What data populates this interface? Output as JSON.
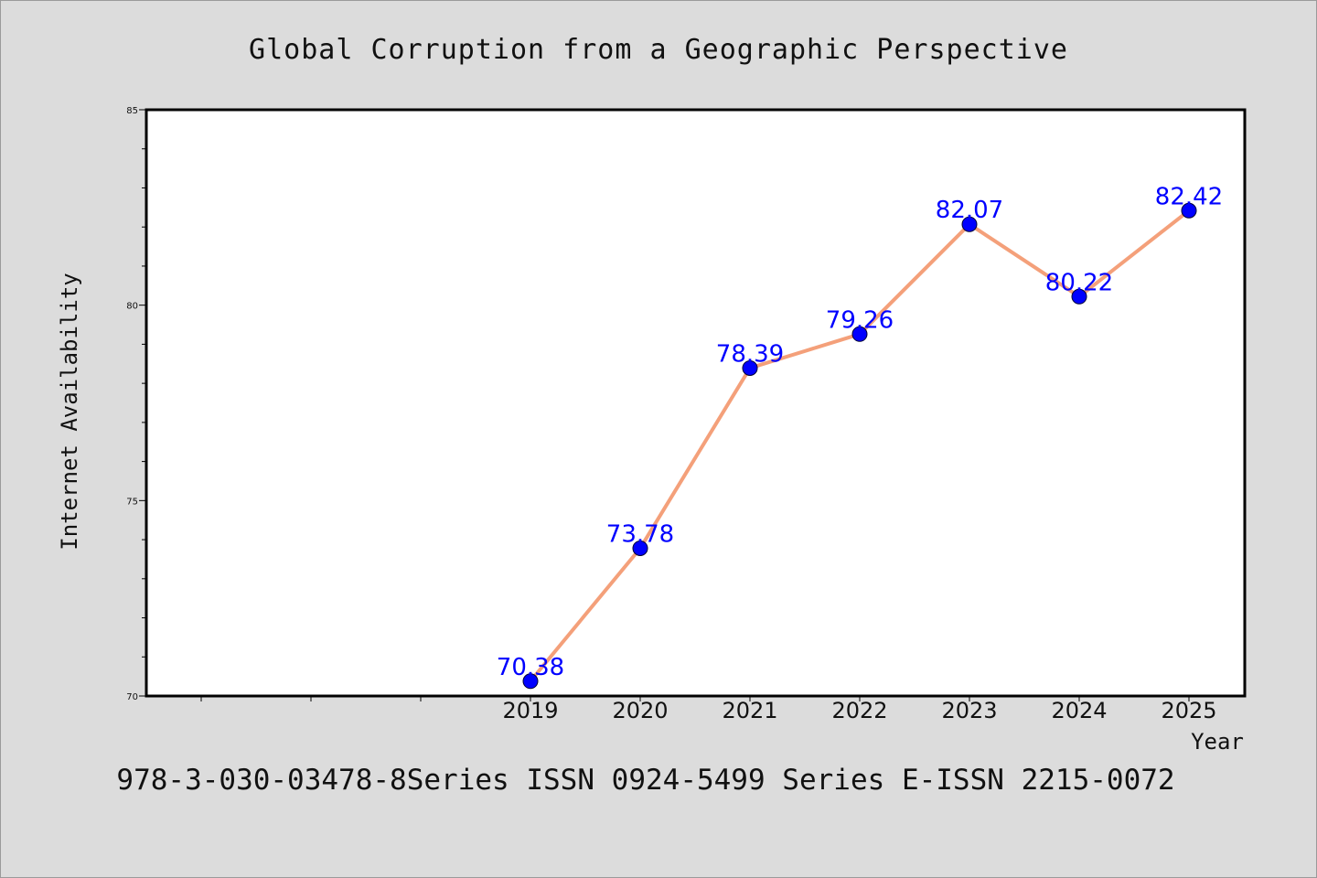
{
  "chart_data": {
    "type": "line",
    "title": "Global Corruption from a Geographic Perspective",
    "xlabel": "Year",
    "ylabel": "Internet Availability",
    "categories": [
      "",
      "",
      "",
      "2019",
      "2020",
      "2021",
      "2022",
      "2023",
      "2024",
      "2025"
    ],
    "series": [
      {
        "values": [
          null,
          null,
          null,
          70.38,
          73.78,
          78.39,
          79.26,
          82.07,
          80.22,
          82.42
        ],
        "labels": [
          "",
          "",
          "",
          "70.38",
          "73.78",
          "78.39",
          "79.26",
          "82.07",
          "80.22",
          "82.42"
        ]
      }
    ],
    "ylim": [
      70,
      85
    ],
    "yticks": [
      70,
      75,
      80,
      85
    ],
    "ytick_labels": [
      "70",
      "75",
      "80",
      "85"
    ],
    "grid": false,
    "colors": {
      "line": "#f4a07a",
      "marker": "#0000ff",
      "data_label": "#0000ff"
    }
  },
  "footer": "978-3-030-03478-8Series ISSN 0924-5499 Series E-ISSN 2215-0072"
}
